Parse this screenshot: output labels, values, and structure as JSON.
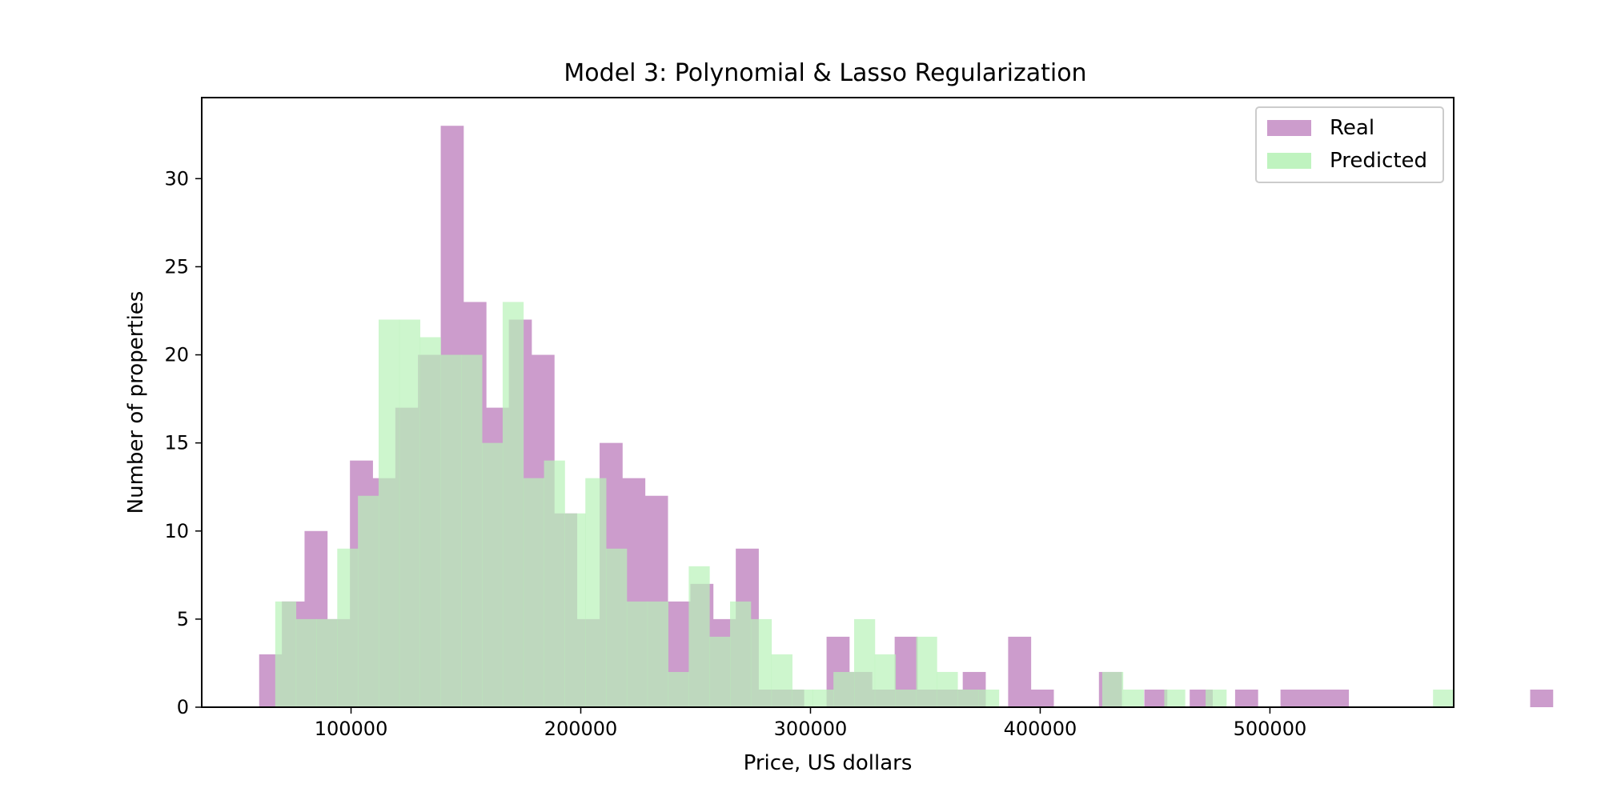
{
  "chart_data": {
    "type": "bar",
    "title": "Model 3: Polynomial & Lasso Regularization",
    "xlabel": "Price, US dollars",
    "ylabel": "Number of properties",
    "xlim": [
      35000,
      580000
    ],
    "ylim": [
      0,
      34.6
    ],
    "xticks": [
      100000,
      200000,
      300000,
      400000,
      500000
    ],
    "xtick_labels": [
      "100000",
      "200000",
      "300000",
      "400000",
      "500000"
    ],
    "yticks": [
      0,
      5,
      10,
      15,
      20,
      25,
      30
    ],
    "ytick_labels": [
      "0",
      "5",
      "10",
      "15",
      "20",
      "25",
      "30"
    ],
    "grid": false,
    "legend": "top-right",
    "series": [
      {
        "name": "Real",
        "color": "#cc9ccc",
        "bin_start": 60000,
        "bin_width": 9880,
        "values": [
          3,
          6,
          10,
          5,
          14,
          13,
          17,
          20,
          33,
          23,
          17,
          22,
          20,
          11,
          5,
          15,
          13,
          12,
          6,
          7,
          5,
          9,
          1,
          1,
          0,
          4,
          2,
          1,
          4,
          1,
          1,
          2,
          0,
          4,
          1,
          0,
          0,
          2,
          0,
          1,
          0,
          1,
          0,
          1,
          0,
          1,
          1,
          1,
          0,
          0,
          0,
          0,
          0,
          0,
          0,
          0,
          1
        ]
      },
      {
        "name": "Predicted",
        "color": "#b8f2b8",
        "bin_start": 67000,
        "bin_width": 9000,
        "values": [
          6,
          5,
          5,
          9,
          12,
          22,
          22,
          21,
          20,
          20,
          15,
          23,
          13,
          14,
          11,
          13,
          9,
          6,
          6,
          2,
          8,
          4,
          6,
          5,
          3,
          1,
          1,
          2,
          5,
          3,
          1,
          4,
          2,
          1,
          1,
          0,
          0,
          0,
          0,
          0,
          2,
          1,
          0,
          1,
          0,
          1,
          0,
          0,
          0,
          0,
          0,
          0,
          0,
          0,
          0,
          0,
          1
        ]
      }
    ]
  }
}
